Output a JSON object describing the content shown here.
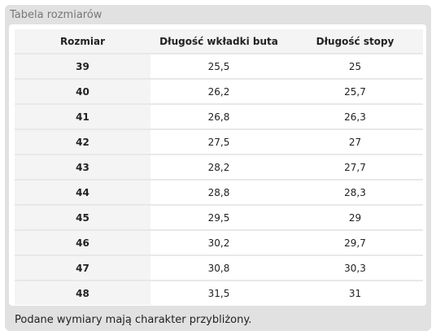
{
  "panel": {
    "title": "Tabela rozmiarów"
  },
  "table": {
    "headers": [
      "Rozmiar",
      "Długość wkładki buta",
      "Długość stopy"
    ],
    "rows": [
      [
        "39",
        "25,5",
        "25"
      ],
      [
        "40",
        "26,2",
        "25,7"
      ],
      [
        "41",
        "26,8",
        "26,3"
      ],
      [
        "42",
        "27,5",
        "27"
      ],
      [
        "43",
        "28,2",
        "27,7"
      ],
      [
        "44",
        "28,8",
        "28,3"
      ],
      [
        "45",
        "29,5",
        "29"
      ],
      [
        "46",
        "30,2",
        "29,7"
      ],
      [
        "47",
        "30,8",
        "30,3"
      ],
      [
        "48",
        "31,5",
        "31"
      ]
    ]
  },
  "note": "Podane wymiary mają charakter przybliżony.",
  "colors": {
    "panel_background": "#e1e1e1",
    "header_background": "#f4f4f4",
    "row_divider": "#e8e8e8",
    "title_text": "#777777"
  }
}
